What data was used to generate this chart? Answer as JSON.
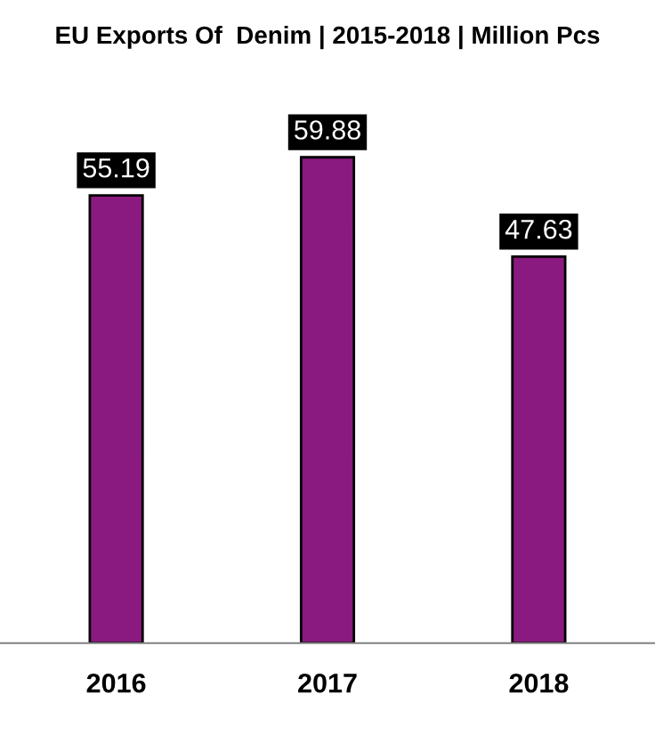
{
  "chart_data": {
    "type": "bar",
    "title": "EU Exports Of  Denim | 2015-2018 | Million Pcs",
    "categories": [
      "2016",
      "2017",
      "2018"
    ],
    "values": [
      55.19,
      59.88,
      47.63
    ],
    "color": "#8b1a80",
    "data_labels": true,
    "grid": false,
    "legend": false
  }
}
